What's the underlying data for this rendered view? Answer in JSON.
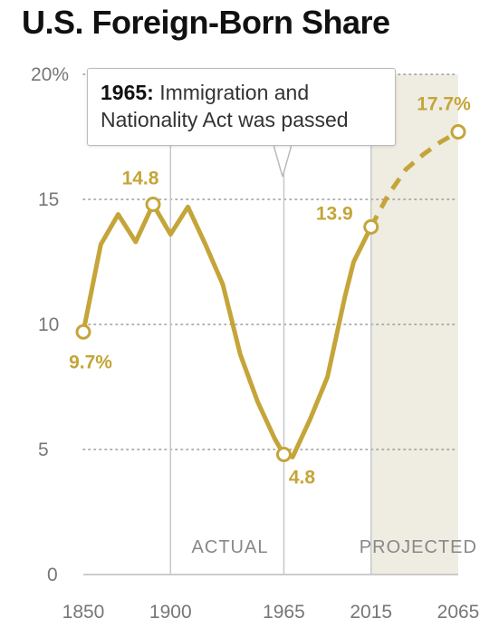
{
  "title": "U.S. Foreign-Born Share",
  "callout": {
    "year": "1965:",
    "text": " Immigration and Nationality Act was passed"
  },
  "colors": {
    "line": "#c5a539",
    "projected_band": "#efece2",
    "gridline": "#999999",
    "axis": "#bbbbbb"
  },
  "chart_data": {
    "type": "line",
    "title": "U.S. Foreign-Born Share",
    "xlabel": "",
    "ylabel": "",
    "xlim": [
      1850,
      2065
    ],
    "ylim": [
      0,
      20
    ],
    "x_ticks": [
      {
        "value": 1850,
        "label": "1850"
      },
      {
        "value": 1900,
        "label": "1900"
      },
      {
        "value": 1965,
        "label": "1965"
      },
      {
        "value": 2015,
        "label": "2015"
      },
      {
        "value": 2065,
        "label": "2065"
      }
    ],
    "y_ticks": [
      {
        "value": 0,
        "label": "0"
      },
      {
        "value": 5,
        "label": "5"
      },
      {
        "value": 10,
        "label": "10"
      },
      {
        "value": 15,
        "label": "15"
      },
      {
        "value": 20,
        "label": "20%"
      }
    ],
    "gridlines": [
      5,
      10,
      15,
      20
    ],
    "vertical_markers": [
      1900,
      1965,
      2015
    ],
    "regions": [
      {
        "label": "ACTUAL",
        "from": 1850,
        "to": 2015
      },
      {
        "label": "PROJECTED",
        "from": 2015,
        "to": 2065
      }
    ],
    "series": [
      {
        "style": "solid",
        "points": [
          [
            1850,
            9.7
          ],
          [
            1860,
            13.2
          ],
          [
            1870,
            14.4
          ],
          [
            1880,
            13.3
          ],
          [
            1890,
            14.8
          ],
          [
            1900,
            13.6
          ],
          [
            1910,
            14.7
          ],
          [
            1920,
            13.2
          ],
          [
            1930,
            11.6
          ],
          [
            1940,
            8.8
          ],
          [
            1950,
            6.9
          ],
          [
            1960,
            5.4
          ],
          [
            1965,
            4.8
          ],
          [
            1970,
            4.7
          ],
          [
            1980,
            6.2
          ],
          [
            1990,
            7.9
          ],
          [
            2000,
            11.1
          ],
          [
            2005,
            12.5
          ],
          [
            2015,
            13.9
          ]
        ]
      },
      {
        "style": "dashed",
        "points": [
          [
            2015,
            13.9
          ],
          [
            2025,
            15.2
          ],
          [
            2035,
            16.2
          ],
          [
            2045,
            16.8
          ],
          [
            2055,
            17.3
          ],
          [
            2065,
            17.7
          ]
        ]
      }
    ],
    "highlighted_points": [
      {
        "x": 1850,
        "y": 9.7,
        "label": "9.7%"
      },
      {
        "x": 1890,
        "y": 14.8,
        "label": "14.8"
      },
      {
        "x": 1965,
        "y": 4.8,
        "label": "4.8"
      },
      {
        "x": 2015,
        "y": 13.9,
        "label": "13.9"
      },
      {
        "x": 2065,
        "y": 17.7,
        "label": "17.7%"
      }
    ]
  }
}
